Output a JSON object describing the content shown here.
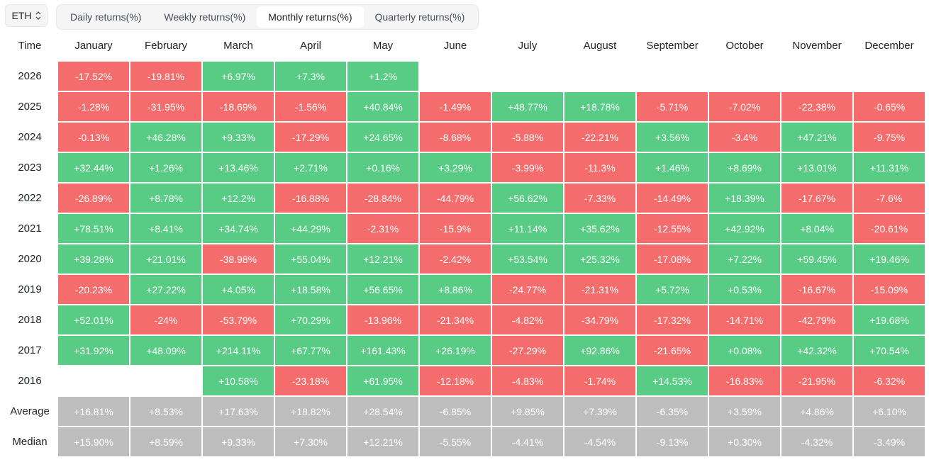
{
  "asset_selector": {
    "value": "ETH",
    "icon": "chevron-updown-icon"
  },
  "tabs": [
    {
      "label": "Daily returns(%)",
      "active": false
    },
    {
      "label": "Weekly returns(%)",
      "active": false
    },
    {
      "label": "Monthly returns(%)",
      "active": true
    },
    {
      "label": "Quarterly returns(%)",
      "active": false
    }
  ],
  "colors": {
    "positive": "#58cb85",
    "negative": "#f56c6c",
    "stat": "#bdbdbd"
  },
  "table": {
    "corner_label": "Time",
    "months": [
      "January",
      "February",
      "March",
      "April",
      "May",
      "June",
      "July",
      "August",
      "September",
      "October",
      "November",
      "December"
    ],
    "rows": [
      {
        "label": "2026",
        "type": "year",
        "values": [
          "-17.52%",
          "-19.81%",
          "+6.97%",
          "+7.3%",
          "+1.2%",
          "",
          "",
          "",
          "",
          "",
          "",
          ""
        ]
      },
      {
        "label": "2025",
        "type": "year",
        "values": [
          "-1.28%",
          "-31.95%",
          "-18.69%",
          "-1.56%",
          "+40.84%",
          "-1.49%",
          "+48.77%",
          "+18.78%",
          "-5.71%",
          "-7.02%",
          "-22.38%",
          "-0.65%"
        ]
      },
      {
        "label": "2024",
        "type": "year",
        "values": [
          "-0.13%",
          "+46.28%",
          "+9.33%",
          "-17.29%",
          "+24.65%",
          "-8.68%",
          "-5.88%",
          "-22.21%",
          "+3.56%",
          "-3.4%",
          "+47.21%",
          "-9.75%"
        ]
      },
      {
        "label": "2023",
        "type": "year",
        "values": [
          "+32.44%",
          "+1.26%",
          "+13.46%",
          "+2.71%",
          "+0.16%",
          "+3.29%",
          "-3.99%",
          "-11.3%",
          "+1.46%",
          "+8.69%",
          "+13.01%",
          "+11.31%"
        ]
      },
      {
        "label": "2022",
        "type": "year",
        "values": [
          "-26.89%",
          "+8.78%",
          "+12.2%",
          "-16.88%",
          "-28.84%",
          "-44.79%",
          "+56.62%",
          "-7.33%",
          "-14.49%",
          "+18.39%",
          "-17.67%",
          "-7.6%"
        ]
      },
      {
        "label": "2021",
        "type": "year",
        "values": [
          "+78.51%",
          "+8.41%",
          "+34.74%",
          "+44.29%",
          "-2.31%",
          "-15.9%",
          "+11.14%",
          "+35.62%",
          "-12.55%",
          "+42.92%",
          "+8.04%",
          "-20.61%"
        ]
      },
      {
        "label": "2020",
        "type": "year",
        "values": [
          "+39.28%",
          "+21.01%",
          "-38.98%",
          "+55.04%",
          "+12.21%",
          "-2.42%",
          "+53.54%",
          "+25.32%",
          "-17.08%",
          "+7.22%",
          "+59.45%",
          "+19.46%"
        ]
      },
      {
        "label": "2019",
        "type": "year",
        "values": [
          "-20.23%",
          "+27.22%",
          "+4.05%",
          "+18.58%",
          "+56.65%",
          "+8.86%",
          "-24.77%",
          "-21.31%",
          "+5.72%",
          "+0.53%",
          "-16.67%",
          "-15.09%"
        ]
      },
      {
        "label": "2018",
        "type": "year",
        "values": [
          "+52.01%",
          "-24%",
          "-53.79%",
          "+70.29%",
          "-13.96%",
          "-21.34%",
          "-4.82%",
          "-34.79%",
          "-17.32%",
          "-14.71%",
          "-42.79%",
          "+19.68%"
        ]
      },
      {
        "label": "2017",
        "type": "year",
        "values": [
          "+31.92%",
          "+48.09%",
          "+214.11%",
          "+67.77%",
          "+161.43%",
          "+26.19%",
          "-27.29%",
          "+92.86%",
          "-21.65%",
          "+0.08%",
          "+42.32%",
          "+70.54%"
        ]
      },
      {
        "label": "2016",
        "type": "year",
        "values": [
          "",
          "",
          "+10.58%",
          "-23.18%",
          "+61.95%",
          "-12.18%",
          "-4.83%",
          "-1.74%",
          "+14.53%",
          "-16.83%",
          "-21.95%",
          "-6.32%"
        ]
      },
      {
        "label": "Average",
        "type": "stat",
        "values": [
          "+16.81%",
          "+8.53%",
          "+17.63%",
          "+18.82%",
          "+28.54%",
          "-6.85%",
          "+9.85%",
          "+7.39%",
          "-6.35%",
          "+3.59%",
          "+4.86%",
          "+6.10%"
        ]
      },
      {
        "label": "Median",
        "type": "stat",
        "values": [
          "+15.90%",
          "+8.59%",
          "+9.33%",
          "+7.30%",
          "+12.21%",
          "-5.55%",
          "-4.41%",
          "-4.54%",
          "-9.13%",
          "+0.30%",
          "-4.32%",
          "-3.49%"
        ]
      }
    ]
  }
}
